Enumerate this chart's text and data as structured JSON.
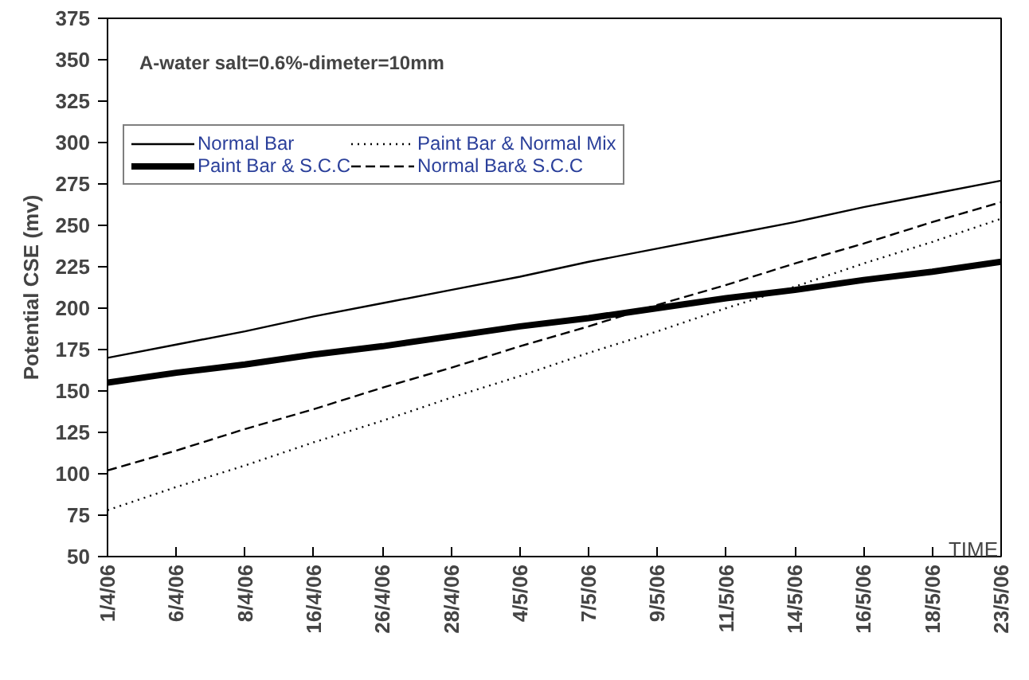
{
  "chart_data": {
    "type": "line",
    "categories": [
      "1/4/06",
      "6/4/06",
      "8/4/06",
      "16/4/06",
      "26/4/06",
      "28/4/06",
      "4/5/06",
      "7/5/06",
      "9/5/06",
      "11/5/06",
      "14/5/06",
      "16/5/06",
      "18/5/06",
      "23/5/06"
    ],
    "series": [
      {
        "name": "Normal Bar",
        "color": "#000000",
        "line_style": "solid",
        "values": [
          170,
          178,
          186,
          195,
          203,
          211,
          219,
          228,
          236,
          244,
          252,
          261,
          269,
          277
        ]
      },
      {
        "name": "Paint Bar & S.C.C",
        "color": "#000000",
        "line_style": "solid",
        "values": [
          155,
          161,
          166,
          172,
          177,
          183,
          189,
          194,
          200,
          206,
          211,
          217,
          222,
          228
        ]
      },
      {
        "name": "Paint Bar & Normal Mix",
        "color": "#000000",
        "line_style": "dotted",
        "values": [
          78,
          92,
          105,
          119,
          132,
          146,
          159,
          173,
          186,
          200,
          213,
          227,
          240,
          254
        ]
      },
      {
        "name": "Normal Bar& S.C.C",
        "color": "#000000",
        "line_style": "dashed",
        "values": [
          102,
          114,
          127,
          139,
          152,
          164,
          177,
          189,
          202,
          214,
          227,
          239,
          252,
          264
        ]
      }
    ],
    "ylabel": "Potential CSE (mv)",
    "xlabel": "TIME",
    "annotations": [
      "A-water salt=0.6%-dimeter=10mm"
    ],
    "ylim": [
      50,
      375
    ],
    "yticks": [
      50,
      75,
      100,
      125,
      150,
      175,
      200,
      225,
      250,
      275,
      300,
      325,
      350,
      375
    ],
    "grid": false,
    "legend": "top left",
    "marker": "none"
  }
}
